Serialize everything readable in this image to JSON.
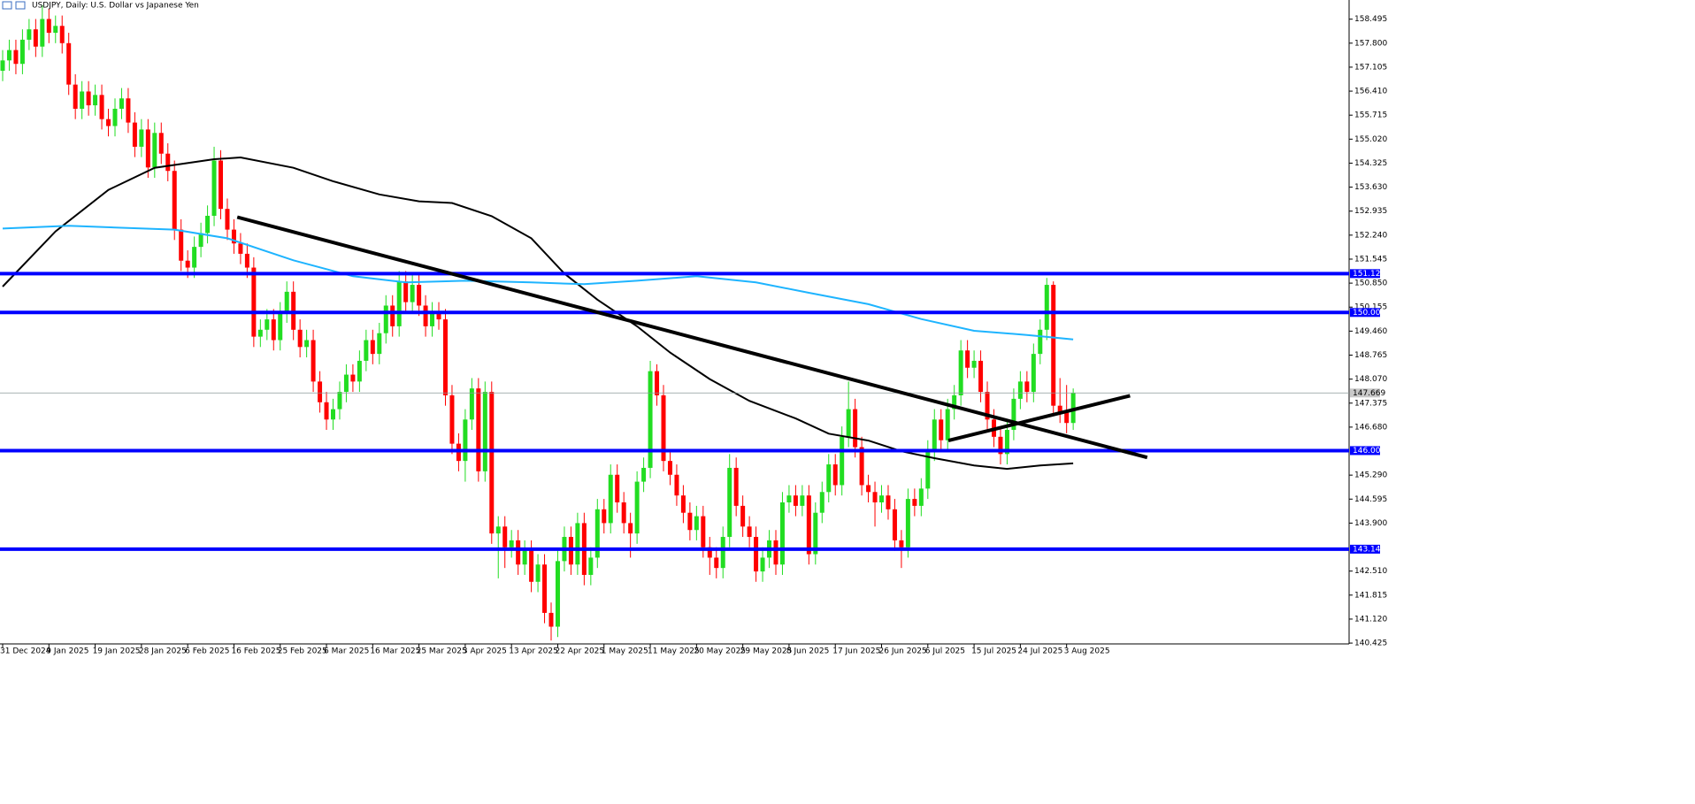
{
  "chart_data": {
    "type": "candlestick",
    "title": "USDJPY, Daily:  U.S. Dollar vs Japanese Yen",
    "categories": [
      "31 Dec 2024",
      null,
      null,
      null,
      null,
      null,
      null,
      "9 Jan 2025",
      null,
      null,
      null,
      null,
      null,
      null,
      "19 Jan 2025",
      null,
      null,
      null,
      null,
      null,
      null,
      "28 Jan 2025",
      null,
      null,
      null,
      null,
      null,
      null,
      "6 Feb 2025",
      null,
      null,
      null,
      null,
      null,
      null,
      "16 Feb 2025",
      null,
      null,
      null,
      null,
      null,
      null,
      "25 Feb 2025",
      null,
      null,
      null,
      null,
      null,
      null,
      "6 Mar 2025",
      null,
      null,
      null,
      null,
      null,
      null,
      "16 Mar 2025",
      null,
      null,
      null,
      null,
      null,
      null,
      "25 Mar 2025",
      null,
      null,
      null,
      null,
      null,
      null,
      "3 Apr 2025",
      null,
      null,
      null,
      null,
      null,
      null,
      "13 Apr 2025",
      null,
      null,
      null,
      null,
      null,
      null,
      "22 Apr 2025",
      null,
      null,
      null,
      null,
      null,
      null,
      "1 May 2025",
      null,
      null,
      null,
      null,
      null,
      null,
      "11 May 2025",
      null,
      null,
      null,
      null,
      null,
      null,
      "20 May 2025",
      null,
      null,
      null,
      null,
      null,
      null,
      "29 May 2025",
      null,
      null,
      null,
      null,
      null,
      null,
      "8 Jun 2025",
      null,
      null,
      null,
      null,
      null,
      null,
      "17 Jun 2025",
      null,
      null,
      null,
      null,
      null,
      null,
      "26 Jun 2025",
      null,
      null,
      null,
      null,
      null,
      null,
      "6 Jul 2025",
      null,
      null,
      null,
      null,
      null,
      null,
      "15 Jul 2025",
      null,
      null,
      null,
      null,
      null,
      null,
      "24 Jul 2025",
      null,
      null,
      null,
      null,
      null,
      null,
      "3 Aug 2025",
      null
    ],
    "open": [
      157.0,
      157.3,
      157.6,
      157.2,
      157.9,
      158.2,
      157.7,
      158.5,
      158.1,
      158.3,
      157.8,
      156.6,
      155.9,
      156.4,
      156.0,
      156.3,
      155.6,
      155.4,
      155.9,
      156.2,
      155.5,
      154.8,
      155.3,
      154.2,
      155.2,
      154.6,
      154.1,
      152.4,
      151.5,
      151.3,
      151.9,
      152.3,
      152.8,
      154.4,
      153.0,
      152.4,
      152.0,
      151.7,
      151.3,
      149.3,
      149.5,
      149.8,
      149.2,
      150.0,
      150.6,
      149.5,
      149.0,
      149.2,
      148.0,
      147.4,
      146.9,
      147.2,
      147.7,
      148.2,
      148.0,
      148.6,
      149.2,
      148.8,
      149.4,
      150.2,
      149.6,
      150.9,
      150.3,
      150.8,
      150.2,
      149.6,
      150.0,
      149.8,
      147.6,
      146.2,
      145.7,
      146.9,
      147.8,
      145.4,
      147.7,
      143.6,
      143.8,
      143.2,
      143.4,
      142.7,
      143.1,
      142.2,
      142.7,
      141.3,
      140.9,
      142.8,
      143.5,
      142.7,
      143.9,
      142.4,
      142.9,
      144.3,
      143.9,
      145.3,
      144.5,
      143.9,
      143.6,
      145.1,
      145.5,
      148.3,
      147.6,
      145.7,
      145.3,
      144.7,
      144.2,
      143.7,
      144.1,
      143.2,
      142.9,
      142.6,
      143.5,
      145.5,
      144.4,
      143.8,
      143.5,
      142.5,
      142.9,
      143.4,
      142.7,
      144.5,
      144.7,
      144.4,
      144.7,
      143.0,
      144.2,
      144.8,
      145.6,
      145.0,
      146.4,
      147.2,
      146.1,
      145.0,
      144.8,
      144.5,
      144.7,
      144.3,
      143.4,
      143.2,
      144.6,
      144.4,
      144.9,
      146.0,
      146.9,
      146.3,
      147.2,
      147.6,
      148.9,
      148.4,
      148.6,
      147.7,
      146.9,
      146.4,
      145.9,
      146.6,
      147.5,
      148.0,
      147.7,
      148.8,
      149.5,
      150.8,
      147.3,
      147.1,
      146.8
    ],
    "high": [
      157.6,
      157.9,
      157.9,
      158.2,
      158.5,
      158.5,
      158.9,
      158.8,
      158.6,
      158.6,
      158.1,
      156.9,
      156.7,
      156.7,
      156.6,
      156.6,
      155.9,
      156.2,
      156.5,
      156.5,
      155.8,
      155.6,
      155.6,
      155.5,
      155.5,
      154.9,
      154.4,
      152.7,
      151.8,
      152.2,
      152.6,
      153.1,
      154.8,
      154.7,
      153.3,
      152.7,
      152.3,
      152.0,
      151.6,
      149.8,
      150.1,
      150.1,
      150.3,
      150.9,
      150.9,
      149.8,
      149.5,
      149.5,
      148.3,
      147.7,
      147.5,
      148.0,
      148.5,
      148.5,
      148.9,
      149.5,
      149.5,
      149.7,
      150.5,
      150.5,
      151.2,
      151.2,
      151.1,
      151.1,
      150.5,
      150.3,
      150.3,
      150.1,
      147.9,
      146.5,
      147.2,
      148.1,
      148.1,
      148.0,
      148.0,
      144.1,
      144.1,
      143.7,
      143.7,
      143.4,
      143.4,
      143.0,
      143.0,
      141.6,
      143.1,
      143.8,
      143.8,
      144.2,
      144.2,
      143.2,
      144.6,
      144.6,
      145.6,
      145.6,
      144.8,
      144.2,
      145.4,
      145.8,
      148.6,
      148.5,
      147.9,
      146.0,
      145.6,
      145.0,
      144.5,
      144.4,
      144.4,
      143.5,
      143.2,
      143.8,
      145.9,
      145.8,
      144.7,
      144.1,
      143.8,
      143.2,
      143.7,
      143.7,
      144.8,
      145.0,
      145.0,
      145.0,
      145.0,
      144.5,
      145.1,
      145.9,
      145.9,
      146.7,
      148.0,
      147.5,
      146.4,
      145.3,
      145.1,
      145.0,
      145.0,
      144.6,
      143.7,
      144.9,
      144.9,
      145.2,
      146.3,
      147.2,
      147.2,
      147.5,
      147.9,
      149.2,
      149.2,
      148.9,
      148.9,
      148.0,
      147.2,
      146.7,
      146.9,
      147.8,
      148.3,
      148.3,
      149.1,
      149.8,
      151.0,
      150.9,
      148.1,
      147.9,
      147.8
    ],
    "low": [
      156.7,
      157.0,
      156.9,
      156.9,
      157.6,
      157.4,
      157.4,
      157.8,
      157.8,
      157.5,
      156.3,
      155.6,
      155.6,
      155.7,
      155.7,
      155.3,
      155.1,
      155.1,
      155.6,
      155.2,
      154.5,
      154.5,
      153.9,
      153.9,
      154.3,
      153.8,
      152.1,
      151.2,
      151.0,
      151.0,
      151.6,
      152.0,
      152.5,
      152.7,
      152.1,
      151.7,
      151.4,
      151.0,
      149.0,
      149.0,
      149.2,
      148.9,
      148.9,
      149.7,
      149.2,
      148.7,
      148.7,
      147.7,
      147.1,
      146.6,
      146.6,
      146.9,
      147.4,
      147.7,
      147.7,
      148.3,
      148.5,
      148.5,
      149.1,
      149.3,
      149.3,
      150.0,
      150.0,
      149.9,
      149.3,
      149.3,
      149.5,
      147.3,
      145.9,
      145.4,
      145.1,
      146.6,
      145.1,
      145.1,
      143.3,
      142.3,
      142.6,
      142.9,
      142.4,
      142.4,
      141.9,
      141.9,
      141.0,
      140.5,
      140.6,
      142.5,
      142.4,
      142.4,
      142.1,
      142.1,
      142.6,
      143.6,
      143.6,
      144.2,
      143.6,
      142.9,
      143.3,
      144.8,
      145.2,
      147.3,
      145.4,
      145.0,
      144.4,
      143.9,
      143.4,
      143.4,
      142.9,
      142.4,
      142.3,
      142.3,
      143.2,
      144.1,
      143.5,
      143.2,
      142.2,
      142.2,
      142.6,
      142.4,
      142.4,
      144.2,
      144.1,
      144.1,
      142.7,
      142.7,
      143.9,
      144.5,
      144.7,
      144.7,
      146.1,
      145.8,
      144.7,
      144.5,
      143.8,
      144.2,
      144.0,
      143.1,
      142.6,
      142.9,
      144.1,
      144.1,
      144.6,
      145.7,
      146.0,
      146.0,
      146.9,
      147.3,
      148.1,
      148.1,
      147.4,
      146.6,
      146.1,
      145.6,
      145.6,
      146.3,
      147.2,
      147.4,
      147.4,
      148.5,
      149.2,
      147.0,
      146.8,
      146.5,
      146.6
    ],
    "close": [
      157.3,
      157.6,
      157.2,
      157.9,
      158.2,
      157.7,
      158.5,
      158.1,
      158.3,
      157.8,
      156.6,
      155.9,
      156.4,
      156.0,
      156.3,
      155.6,
      155.4,
      155.9,
      156.2,
      155.5,
      154.8,
      155.3,
      154.2,
      155.2,
      154.6,
      154.1,
      152.4,
      151.5,
      151.3,
      151.9,
      152.3,
      152.8,
      154.4,
      153.0,
      152.4,
      152.0,
      151.7,
      151.3,
      149.3,
      149.5,
      149.8,
      149.2,
      150.0,
      150.6,
      149.5,
      149.0,
      149.2,
      148.0,
      147.4,
      146.9,
      147.2,
      147.7,
      148.2,
      148.0,
      148.6,
      149.2,
      148.8,
      149.4,
      150.2,
      149.6,
      150.9,
      150.3,
      150.8,
      150.2,
      149.6,
      150.0,
      149.8,
      147.6,
      146.2,
      145.7,
      146.9,
      147.8,
      145.4,
      147.7,
      143.6,
      143.8,
      143.2,
      143.4,
      142.7,
      143.1,
      142.2,
      142.7,
      141.3,
      140.9,
      142.8,
      143.5,
      142.7,
      143.9,
      142.4,
      142.9,
      144.3,
      143.9,
      145.3,
      144.5,
      143.9,
      143.6,
      145.1,
      145.5,
      148.3,
      147.6,
      145.7,
      145.3,
      144.7,
      144.2,
      143.7,
      144.1,
      143.2,
      142.9,
      142.6,
      143.5,
      145.5,
      144.4,
      143.8,
      143.5,
      142.5,
      142.9,
      143.4,
      142.7,
      144.5,
      144.7,
      144.4,
      144.7,
      143.0,
      144.2,
      144.8,
      145.6,
      145.0,
      146.4,
      147.2,
      146.1,
      145.0,
      144.8,
      144.5,
      144.7,
      144.3,
      143.4,
      143.2,
      144.6,
      144.4,
      144.9,
      146.0,
      146.9,
      146.3,
      147.2,
      147.6,
      148.9,
      148.4,
      148.6,
      147.7,
      146.9,
      146.4,
      145.9,
      146.6,
      147.5,
      148.0,
      147.7,
      148.8,
      149.5,
      150.8,
      147.3,
      147.1,
      146.8,
      147.669
    ],
    "up_color": "#22dd22",
    "down_color": "#ff0000",
    "ylim": [
      140.35,
      159.05
    ],
    "yticks": [
      158.495,
      {
        "value": 157.8,
        "label": "157.800"
      },
      157.105,
      {
        "value": 156.41,
        "label": "156.410"
      },
      155.715,
      {
        "value": 155.02,
        "label": "155.020"
      },
      154.325,
      {
        "value": 153.63,
        "label": "153.630"
      },
      152.935,
      {
        "value": 152.24,
        "label": "152.240"
      },
      151.545,
      {
        "value": 150.85,
        "label": "150.850"
      },
      150.155,
      {
        "value": 149.46,
        "label": "149.460"
      },
      148.765,
      {
        "value": 148.07,
        "label": "148.070"
      },
      147.375,
      {
        "value": 146.68,
        "label": "146.680"
      },
      {
        "value": 145.29,
        "label": "145.290"
      },
      144.595,
      {
        "value": 143.9,
        "label": "143.900"
      },
      {
        "value": 142.51,
        "label": "142.510"
      },
      141.815,
      {
        "value": 141.12,
        "label": "141.120"
      },
      140.425
    ],
    "moving_averages": [
      {
        "color": "#000000",
        "x": [
          0,
          8,
          16,
          23,
          32,
          36,
          44,
          50,
          57,
          63,
          68,
          74,
          80,
          85,
          90,
          96,
          101,
          107,
          113,
          120,
          125,
          131,
          136,
          141,
          147,
          152,
          157,
          162
        ],
        "values": [
          150.75,
          152.35,
          153.55,
          154.19,
          154.44,
          154.49,
          154.19,
          153.8,
          153.42,
          153.22,
          153.17,
          152.79,
          152.15,
          151.13,
          150.37,
          149.6,
          148.84,
          148.07,
          147.44,
          146.93,
          146.49,
          146.29,
          145.98,
          145.78,
          145.57,
          145.47,
          145.57,
          145.63
        ]
      },
      {
        "color": "#1eb4ff",
        "x": [
          0,
          10,
          26,
          34,
          44,
          53,
          61,
          70,
          80,
          88,
          96,
          105,
          114,
          122,
          131,
          139,
          147,
          155,
          162
        ],
        "values": [
          152.43,
          152.51,
          152.4,
          152.15,
          151.51,
          151.05,
          150.87,
          150.92,
          150.87,
          150.82,
          150.92,
          151.05,
          150.87,
          150.57,
          150.24,
          149.81,
          149.47,
          149.35,
          149.22
        ]
      }
    ],
    "level_color": "#0000ff",
    "levels": [
      151.126,
      {
        "value": 150,
        "label": "150.000"
      },
      {
        "value": 146,
        "label": "146.000"
      },
      143.145
    ],
    "current_price": 147.669,
    "trendlines": [
      {
        "color": "#000000",
        "x": [
          35.5,
          173.2
        ],
        "values": [
          152.76,
          145.8
        ]
      },
      {
        "color": "#000000",
        "x": [
          143.1,
          170.6
        ],
        "values": [
          146.29,
          147.59
        ]
      }
    ]
  }
}
